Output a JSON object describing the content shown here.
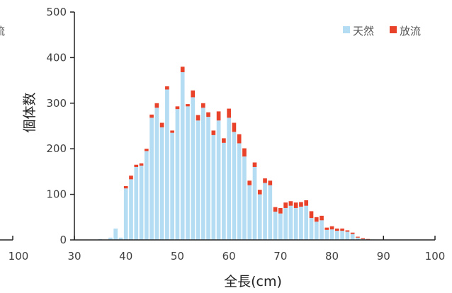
{
  "chart_data": {
    "type": "bar",
    "stacked": true,
    "title": "",
    "xlabel": "全長(cm)",
    "ylabel": "個体数",
    "xlim": [
      30,
      100
    ],
    "ylim": [
      0,
      500
    ],
    "x_ticks": [
      "30",
      "40",
      "50",
      "60",
      "70",
      "80",
      "90",
      "100"
    ],
    "y_ticks": [
      "0",
      "100",
      "200",
      "300",
      "400",
      "500"
    ],
    "legend_position": "top-right",
    "colors": {
      "天然": "#b4dcf2",
      "放流": "#e8422a"
    },
    "categories": [
      35,
      36,
      37,
      38,
      39,
      40,
      41,
      42,
      43,
      44,
      45,
      46,
      47,
      48,
      49,
      50,
      51,
      52,
      53,
      54,
      55,
      56,
      57,
      58,
      59,
      60,
      61,
      62,
      63,
      64,
      65,
      66,
      67,
      68,
      69,
      70,
      71,
      72,
      73,
      74,
      75,
      76,
      77,
      78,
      79,
      80,
      81,
      82,
      83,
      84,
      85,
      86,
      87,
      88,
      89
    ],
    "series": [
      {
        "name": "天然",
        "values": [
          2,
          0,
          5,
          25,
          5,
          113,
          133,
          160,
          163,
          195,
          268,
          290,
          247,
          330,
          235,
          287,
          368,
          293,
          313,
          262,
          290,
          270,
          230,
          262,
          213,
          268,
          237,
          212,
          183,
          120,
          160,
          100,
          125,
          120,
          62,
          58,
          70,
          75,
          70,
          73,
          75,
          48,
          40,
          43,
          22,
          23,
          20,
          20,
          18,
          13,
          5,
          2,
          1,
          1,
          0
        ]
      },
      {
        "name": "放流",
        "values": [
          0,
          0,
          0,
          0,
          0,
          5,
          8,
          5,
          5,
          5,
          7,
          10,
          10,
          7,
          5,
          6,
          12,
          5,
          15,
          12,
          10,
          10,
          10,
          20,
          10,
          20,
          20,
          20,
          18,
          10,
          10,
          10,
          10,
          10,
          10,
          12,
          12,
          10,
          12,
          10,
          12,
          15,
          10,
          10,
          5,
          7,
          5,
          5,
          3,
          3,
          2,
          2,
          1,
          0,
          0
        ]
      }
    ]
  },
  "extra_left_text": "流",
  "extra_left_tick": "100"
}
